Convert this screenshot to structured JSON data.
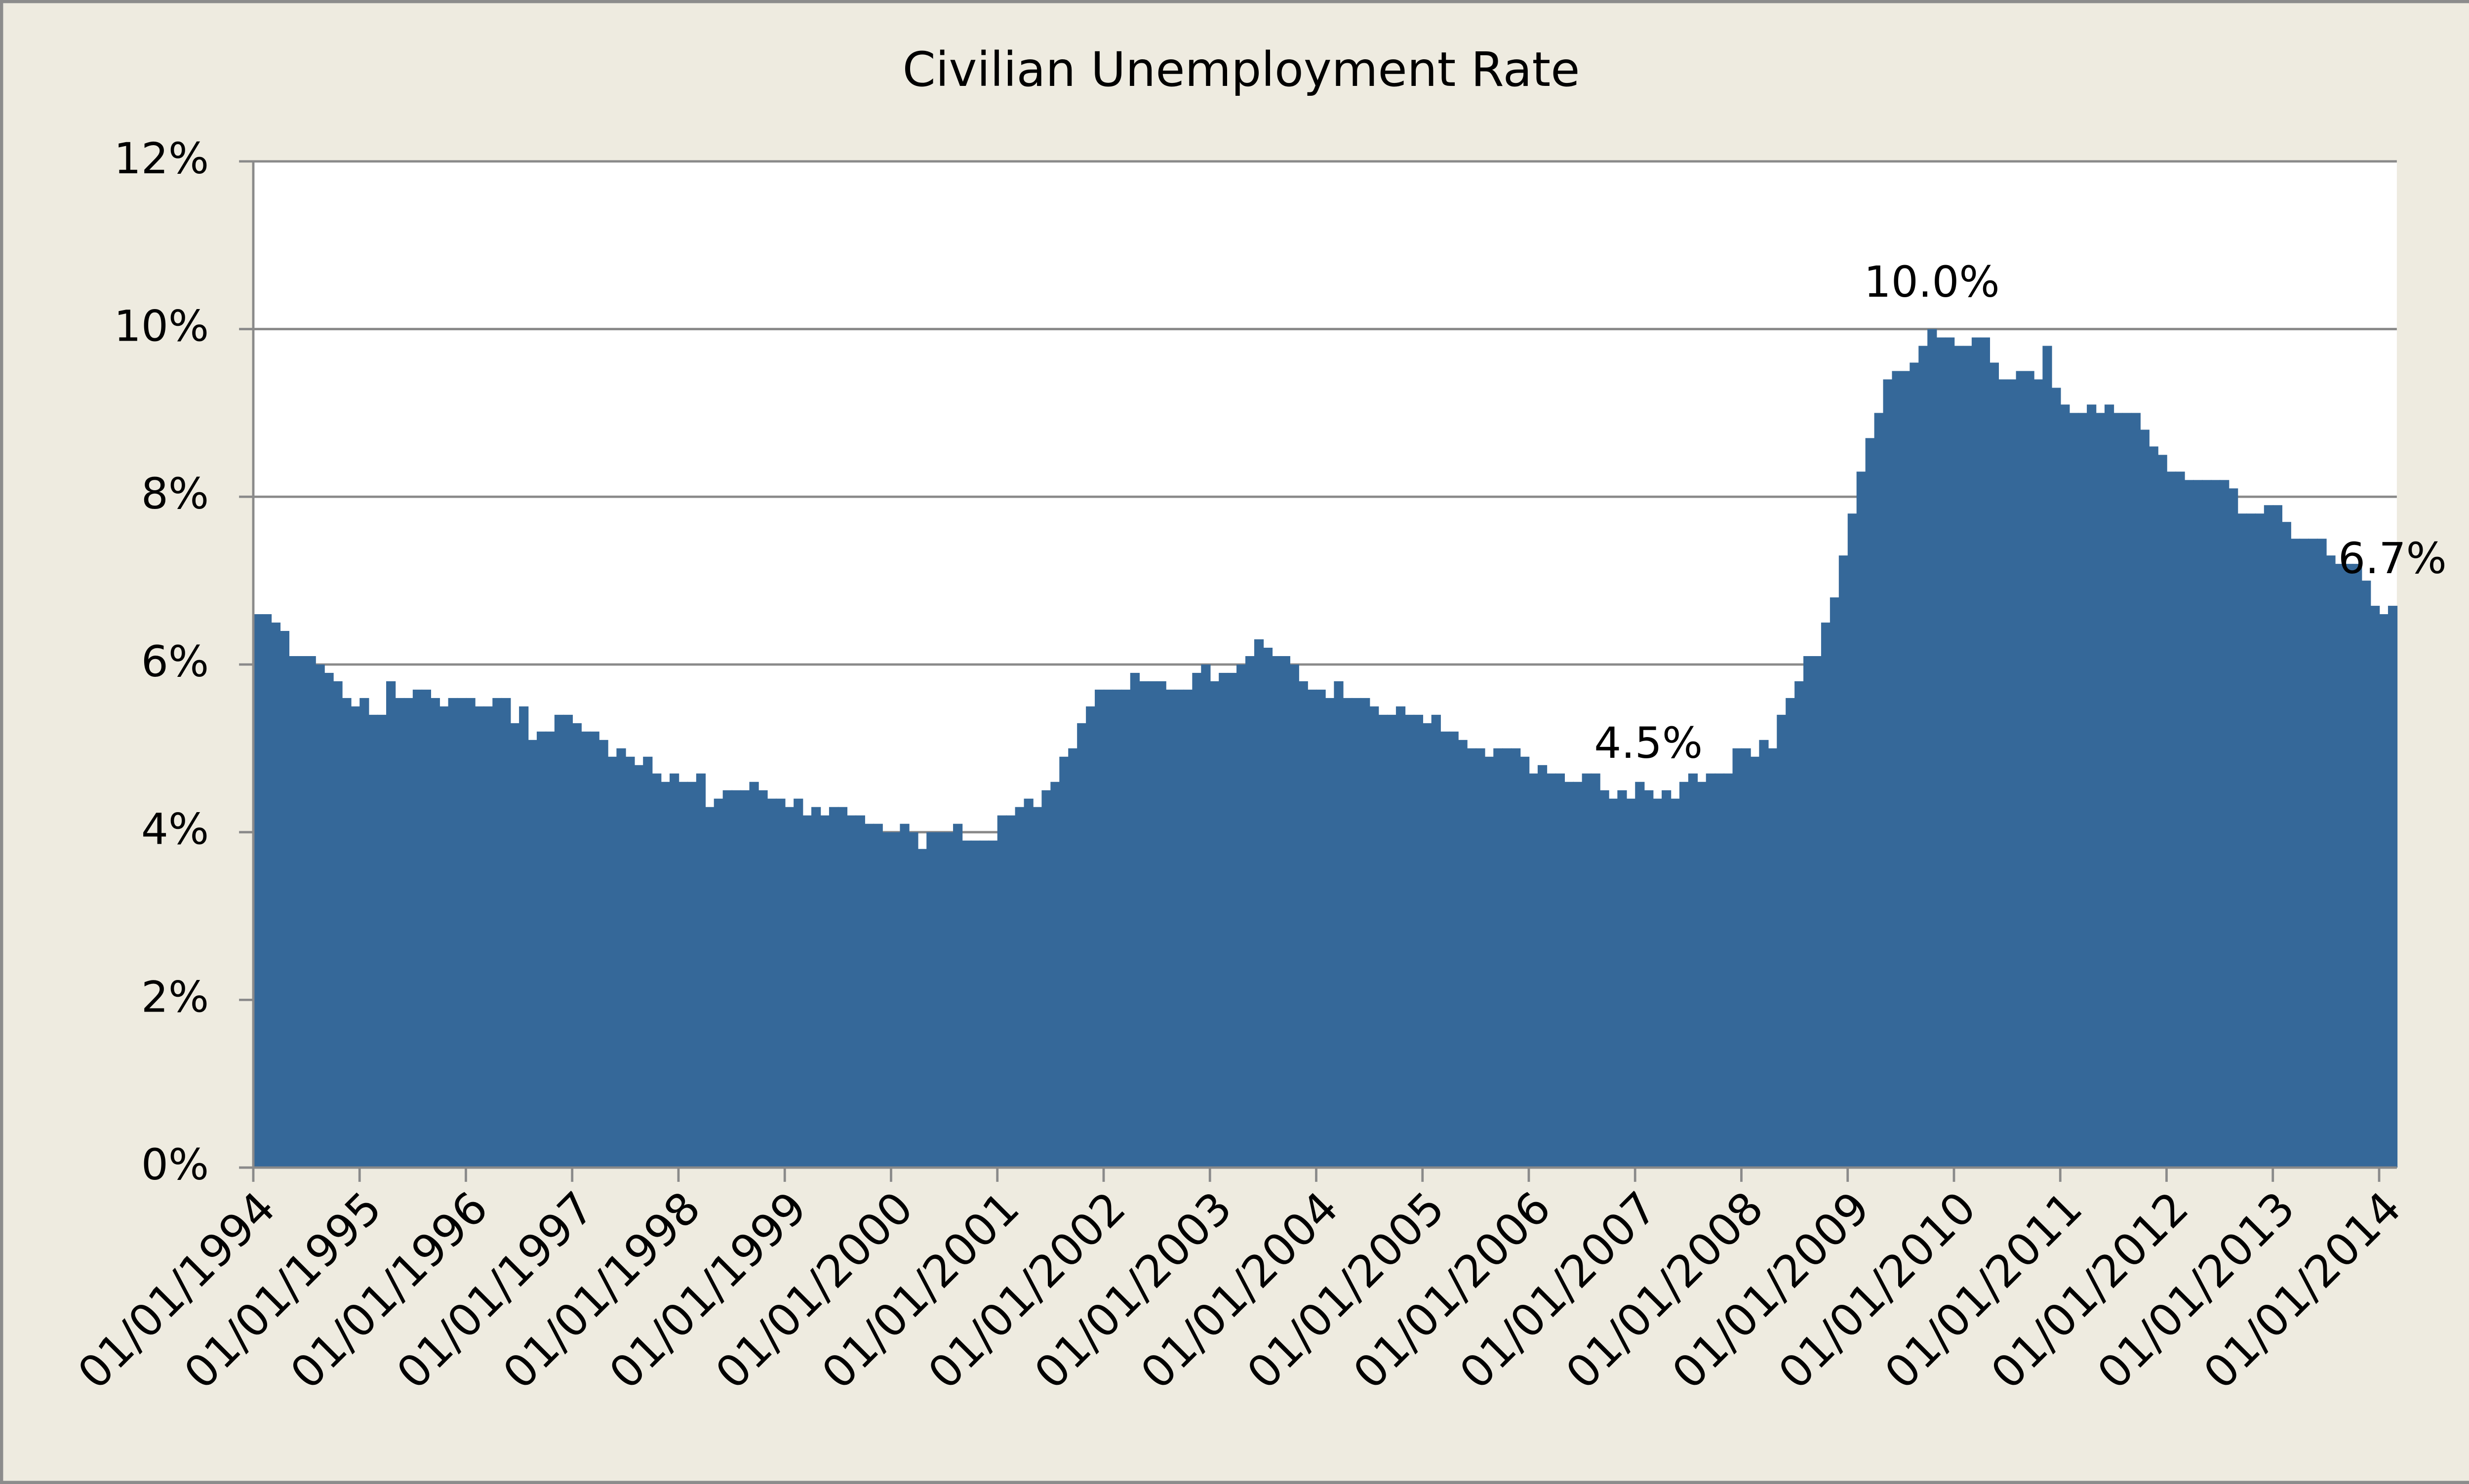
{
  "chart_data": {
    "type": "bar",
    "title": "Civilian Unemployment Rate",
    "color": "#356899",
    "grid": true,
    "ylim": [
      0,
      12
    ],
    "yticks": [
      {
        "value": 0,
        "label": "0%"
      },
      {
        "value": 2,
        "label": "2%"
      },
      {
        "value": 4,
        "label": "4%"
      },
      {
        "value": 6,
        "label": "6%"
      },
      {
        "value": 8,
        "label": "8%"
      },
      {
        "value": 10,
        "label": "10%"
      },
      {
        "value": 12,
        "label": "12%"
      }
    ],
    "categories": [
      "01/01/1994",
      null,
      null,
      null,
      null,
      null,
      null,
      null,
      null,
      null,
      null,
      null,
      "01/01/1995",
      null,
      null,
      null,
      null,
      null,
      null,
      null,
      null,
      null,
      null,
      null,
      "01/01/1996",
      null,
      null,
      null,
      null,
      null,
      null,
      null,
      null,
      null,
      null,
      null,
      "01/01/1997",
      null,
      null,
      null,
      null,
      null,
      null,
      null,
      null,
      null,
      null,
      null,
      "01/01/1998",
      null,
      null,
      null,
      null,
      null,
      null,
      null,
      null,
      null,
      null,
      null,
      "01/01/1999",
      null,
      null,
      null,
      null,
      null,
      null,
      null,
      null,
      null,
      null,
      null,
      "01/01/2000",
      null,
      null,
      null,
      null,
      null,
      null,
      null,
      null,
      null,
      null,
      null,
      "01/01/2001",
      null,
      null,
      null,
      null,
      null,
      null,
      null,
      null,
      null,
      null,
      null,
      "01/01/2002",
      null,
      null,
      null,
      null,
      null,
      null,
      null,
      null,
      null,
      null,
      null,
      "01/01/2003",
      null,
      null,
      null,
      null,
      null,
      null,
      null,
      null,
      null,
      null,
      null,
      "01/01/2004",
      null,
      null,
      null,
      null,
      null,
      null,
      null,
      null,
      null,
      null,
      null,
      "01/01/2005",
      null,
      null,
      null,
      null,
      null,
      null,
      null,
      null,
      null,
      null,
      null,
      "01/01/2006",
      null,
      null,
      null,
      null,
      null,
      null,
      null,
      null,
      null,
      null,
      null,
      "01/01/2007",
      null,
      null,
      null,
      null,
      null,
      null,
      null,
      null,
      null,
      null,
      null,
      "01/01/2008",
      null,
      null,
      null,
      null,
      null,
      null,
      null,
      null,
      null,
      null,
      null,
      "01/01/2009",
      null,
      null,
      null,
      null,
      null,
      null,
      null,
      null,
      null,
      null,
      null,
      "01/01/2010",
      null,
      null,
      null,
      null,
      null,
      null,
      null,
      null,
      null,
      null,
      null,
      "01/01/2011",
      null,
      null,
      null,
      null,
      null,
      null,
      null,
      null,
      null,
      null,
      null,
      "01/01/2012",
      null,
      null,
      null,
      null,
      null,
      null,
      null,
      null,
      null,
      null,
      null,
      "01/01/2013",
      null,
      null,
      null,
      null,
      null,
      null,
      null,
      null,
      null,
      null,
      null,
      "01/01/2014",
      null
    ],
    "values": [
      6.6,
      6.6,
      6.5,
      6.4,
      6.1,
      6.1,
      6.1,
      6.0,
      5.9,
      5.8,
      5.6,
      5.5,
      5.6,
      5.4,
      5.4,
      5.8,
      5.6,
      5.6,
      5.7,
      5.7,
      5.6,
      5.5,
      5.6,
      5.6,
      5.6,
      5.5,
      5.5,
      5.6,
      5.6,
      5.3,
      5.5,
      5.1,
      5.2,
      5.2,
      5.4,
      5.4,
      5.3,
      5.2,
      5.2,
      5.1,
      4.9,
      5.0,
      4.9,
      4.8,
      4.9,
      4.7,
      4.6,
      4.7,
      4.6,
      4.6,
      4.7,
      4.3,
      4.4,
      4.5,
      4.5,
      4.5,
      4.6,
      4.5,
      4.4,
      4.4,
      4.3,
      4.4,
      4.2,
      4.3,
      4.2,
      4.3,
      4.3,
      4.2,
      4.2,
      4.1,
      4.1,
      4.0,
      4.0,
      4.1,
      4.0,
      3.8,
      4.0,
      4.0,
      4.0,
      4.1,
      3.9,
      3.9,
      3.9,
      3.9,
      4.2,
      4.2,
      4.3,
      4.4,
      4.3,
      4.5,
      4.6,
      4.9,
      5.0,
      5.3,
      5.5,
      5.7,
      5.7,
      5.7,
      5.7,
      5.9,
      5.8,
      5.8,
      5.8,
      5.7,
      5.7,
      5.7,
      5.9,
      6.0,
      5.8,
      5.9,
      5.9,
      6.0,
      6.1,
      6.3,
      6.2,
      6.1,
      6.1,
      6.0,
      5.8,
      5.7,
      5.7,
      5.6,
      5.8,
      5.6,
      5.6,
      5.6,
      5.5,
      5.4,
      5.4,
      5.5,
      5.4,
      5.4,
      5.3,
      5.4,
      5.2,
      5.2,
      5.1,
      5.0,
      5.0,
      4.9,
      5.0,
      5.0,
      5.0,
      4.9,
      4.7,
      4.8,
      4.7,
      4.7,
      4.6,
      4.6,
      4.7,
      4.7,
      4.5,
      4.4,
      4.5,
      4.4,
      4.6,
      4.5,
      4.4,
      4.5,
      4.4,
      4.6,
      4.7,
      4.6,
      4.7,
      4.7,
      4.7,
      5.0,
      5.0,
      4.9,
      5.1,
      5.0,
      5.4,
      5.6,
      5.8,
      6.1,
      6.1,
      6.5,
      6.8,
      7.3,
      7.8,
      8.3,
      8.7,
      9.0,
      9.4,
      9.5,
      9.5,
      9.6,
      9.8,
      10.0,
      9.9,
      9.9,
      9.8,
      9.8,
      9.9,
      9.9,
      9.6,
      9.4,
      9.4,
      9.5,
      9.5,
      9.4,
      9.8,
      9.3,
      9.1,
      9.0,
      9.0,
      9.1,
      9.0,
      9.1,
      9.0,
      9.0,
      9.0,
      8.8,
      8.6,
      8.5,
      8.3,
      8.3,
      8.2,
      8.2,
      8.2,
      8.2,
      8.2,
      8.1,
      7.8,
      7.8,
      7.8,
      7.9,
      7.9,
      7.7,
      7.5,
      7.5,
      7.5,
      7.5,
      7.3,
      7.2,
      7.2,
      7.2,
      7.0,
      6.7,
      6.6,
      6.7
    ],
    "value_labels": [
      null,
      null,
      null,
      null,
      null,
      null,
      null,
      null,
      null,
      null,
      null,
      null,
      null,
      null,
      null,
      null,
      null,
      null,
      null,
      null,
      null,
      null,
      null,
      null,
      null,
      null,
      null,
      null,
      null,
      null,
      null,
      null,
      null,
      null,
      null,
      null,
      null,
      null,
      null,
      null,
      null,
      null,
      null,
      null,
      null,
      null,
      null,
      null,
      null,
      null,
      null,
      null,
      null,
      null,
      null,
      null,
      null,
      null,
      null,
      null,
      null,
      null,
      null,
      null,
      null,
      null,
      null,
      null,
      null,
      null,
      null,
      null,
      null,
      null,
      null,
      null,
      null,
      null,
      null,
      null,
      null,
      null,
      null,
      null,
      null,
      null,
      null,
      null,
      null,
      null,
      null,
      null,
      null,
      null,
      null,
      null,
      null,
      null,
      null,
      null,
      null,
      null,
      null,
      null,
      null,
      null,
      null,
      null,
      null,
      null,
      null,
      null,
      null,
      null,
      null,
      null,
      null,
      null,
      null,
      null,
      null,
      null,
      null,
      null,
      null,
      null,
      null,
      null,
      null,
      null,
      null,
      null,
      null,
      null,
      null,
      null,
      null,
      null,
      null,
      null,
      null,
      null,
      null,
      null,
      null,
      null,
      null,
      null,
      null,
      null,
      null,
      null,
      null,
      null,
      null,
      null,
      null,
      "4.5%",
      null,
      null,
      null,
      null,
      null,
      null,
      null,
      null,
      null,
      null,
      null,
      null,
      null,
      null,
      null,
      null,
      null,
      null,
      null,
      null,
      null,
      null,
      null,
      null,
      null,
      null,
      null,
      null,
      null,
      null,
      null,
      "10.0%",
      null,
      null,
      null,
      null,
      null,
      null,
      null,
      null,
      null,
      null,
      null,
      null,
      null,
      null,
      null,
      null,
      null,
      null,
      null,
      null,
      null,
      null,
      null,
      null,
      null,
      null,
      null,
      null,
      null,
      null,
      null,
      null,
      null,
      null,
      null,
      null,
      null,
      null,
      null,
      null,
      null,
      null,
      null,
      null,
      null,
      null,
      null,
      null,
      null,
      null,
      null,
      "6.7%"
    ]
  }
}
